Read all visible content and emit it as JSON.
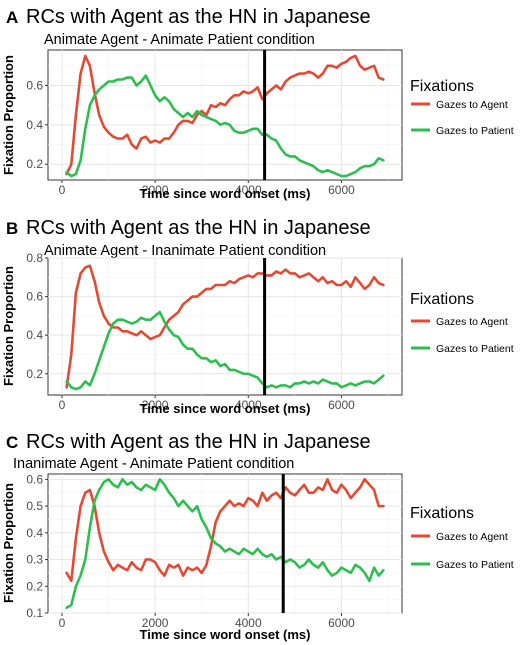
{
  "chart_data": [
    {
      "type": "line",
      "panel_letter": "A",
      "title": "RCs with Agent as the HN in Japanese",
      "subtitle": "Animate Agent - Animate Patient condition",
      "xlabel": "Time since word onset (ms)",
      "ylabel": "Fixation Proportion",
      "xlim": [
        -300,
        7300
      ],
      "ylim": [
        0.12,
        0.78
      ],
      "xticks": [
        0,
        2000,
        4000,
        6000
      ],
      "xtick_labels": [
        "0",
        "2000",
        "4000",
        "6000"
      ],
      "yticks": [
        0.2,
        0.4,
        0.6
      ],
      "ytick_labels": [
        "0.2",
        "0.4",
        "0.6"
      ],
      "vline_x": 4350,
      "grid": true,
      "legend_title": "Fixations",
      "legend_position": "right",
      "series": [
        {
          "name": "Gazes to Agent",
          "color": "#e24a33",
          "x": [
            100,
            200,
            300,
            400,
            500,
            600,
            700,
            800,
            900,
            1000,
            1100,
            1200,
            1300,
            1400,
            1500,
            1600,
            1700,
            1800,
            1900,
            2000,
            2100,
            2200,
            2300,
            2400,
            2500,
            2600,
            2700,
            2800,
            2900,
            3000,
            3100,
            3200,
            3300,
            3400,
            3500,
            3600,
            3700,
            3800,
            3900,
            4000,
            4100,
            4200,
            4300,
            4400,
            4500,
            4600,
            4700,
            4800,
            4900,
            5000,
            5100,
            5200,
            5300,
            5400,
            5500,
            5600,
            5700,
            5800,
            5900,
            6000,
            6100,
            6200,
            6300,
            6400,
            6500,
            6600,
            6700,
            6800,
            6900
          ],
          "y": [
            0.15,
            0.2,
            0.45,
            0.66,
            0.75,
            0.7,
            0.56,
            0.45,
            0.39,
            0.36,
            0.34,
            0.33,
            0.33,
            0.35,
            0.3,
            0.28,
            0.33,
            0.34,
            0.31,
            0.32,
            0.31,
            0.33,
            0.33,
            0.36,
            0.4,
            0.42,
            0.42,
            0.41,
            0.45,
            0.47,
            0.45,
            0.5,
            0.49,
            0.51,
            0.5,
            0.53,
            0.55,
            0.55,
            0.57,
            0.56,
            0.57,
            0.59,
            0.53,
            0.56,
            0.58,
            0.6,
            0.58,
            0.62,
            0.64,
            0.65,
            0.66,
            0.66,
            0.67,
            0.66,
            0.64,
            0.66,
            0.7,
            0.7,
            0.69,
            0.71,
            0.72,
            0.74,
            0.75,
            0.7,
            0.68,
            0.69,
            0.7,
            0.64,
            0.63
          ]
        },
        {
          "name": "Gazes to Patient",
          "color": "#2dbe4f",
          "x": [
            100,
            200,
            300,
            400,
            500,
            600,
            700,
            800,
            900,
            1000,
            1100,
            1200,
            1300,
            1400,
            1500,
            1600,
            1700,
            1800,
            1900,
            2000,
            2100,
            2200,
            2300,
            2400,
            2500,
            2600,
            2700,
            2800,
            2900,
            3000,
            3100,
            3200,
            3300,
            3400,
            3500,
            3600,
            3700,
            3800,
            3900,
            4000,
            4100,
            4200,
            4300,
            4400,
            4500,
            4600,
            4700,
            4800,
            4900,
            5000,
            5100,
            5200,
            5300,
            5400,
            5500,
            5600,
            5700,
            5800,
            5900,
            6000,
            6100,
            6200,
            6300,
            6400,
            6500,
            6600,
            6700,
            6800,
            6900
          ],
          "y": [
            0.16,
            0.14,
            0.15,
            0.22,
            0.38,
            0.5,
            0.55,
            0.58,
            0.6,
            0.62,
            0.62,
            0.63,
            0.63,
            0.64,
            0.64,
            0.6,
            0.62,
            0.65,
            0.6,
            0.55,
            0.52,
            0.54,
            0.52,
            0.48,
            0.46,
            0.44,
            0.46,
            0.44,
            0.47,
            0.45,
            0.44,
            0.43,
            0.42,
            0.4,
            0.41,
            0.4,
            0.37,
            0.36,
            0.36,
            0.37,
            0.38,
            0.38,
            0.35,
            0.35,
            0.33,
            0.32,
            0.28,
            0.25,
            0.24,
            0.24,
            0.22,
            0.21,
            0.2,
            0.19,
            0.17,
            0.16,
            0.17,
            0.16,
            0.15,
            0.14,
            0.14,
            0.15,
            0.16,
            0.18,
            0.19,
            0.19,
            0.2,
            0.23,
            0.22
          ]
        }
      ]
    },
    {
      "type": "line",
      "panel_letter": "B",
      "title": "RCs with Agent as the HN in Japanese",
      "subtitle": "Animate Agent - Inanimate Patient condition",
      "xlabel": "Time since word onset (ms)",
      "ylabel": "Fixation Proportion",
      "xlim": [
        -300,
        7300
      ],
      "ylim": [
        0.09,
        0.8
      ],
      "xticks": [
        0,
        2000,
        4000,
        6000
      ],
      "xtick_labels": [
        "0",
        "2000",
        "4000",
        "6000"
      ],
      "yticks": [
        0.2,
        0.4,
        0.6,
        0.8
      ],
      "ytick_labels": [
        "0.2",
        "0.4",
        "0.6",
        "0.8"
      ],
      "vline_x": 4350,
      "grid": true,
      "legend_title": "Fixations",
      "legend_position": "right",
      "series": [
        {
          "name": "Gazes to Agent",
          "color": "#e24a33",
          "x": [
            100,
            200,
            300,
            400,
            500,
            600,
            700,
            800,
            900,
            1000,
            1100,
            1200,
            1300,
            1400,
            1500,
            1600,
            1700,
            1800,
            1900,
            2000,
            2100,
            2200,
            2300,
            2400,
            2500,
            2600,
            2700,
            2800,
            2900,
            3000,
            3100,
            3200,
            3300,
            3400,
            3500,
            3600,
            3700,
            3800,
            3900,
            4000,
            4100,
            4200,
            4300,
            4400,
            4500,
            4600,
            4700,
            4800,
            4900,
            5000,
            5100,
            5200,
            5300,
            5400,
            5500,
            5600,
            5700,
            5800,
            5900,
            6000,
            6100,
            6200,
            6300,
            6400,
            6500,
            6600,
            6700,
            6800,
            6900
          ],
          "y": [
            0.13,
            0.3,
            0.62,
            0.72,
            0.75,
            0.76,
            0.68,
            0.57,
            0.5,
            0.46,
            0.44,
            0.44,
            0.42,
            0.42,
            0.41,
            0.4,
            0.42,
            0.4,
            0.38,
            0.39,
            0.4,
            0.44,
            0.48,
            0.5,
            0.52,
            0.56,
            0.58,
            0.6,
            0.6,
            0.62,
            0.64,
            0.64,
            0.66,
            0.66,
            0.66,
            0.68,
            0.67,
            0.69,
            0.7,
            0.71,
            0.7,
            0.72,
            0.72,
            0.71,
            0.71,
            0.73,
            0.72,
            0.74,
            0.72,
            0.72,
            0.7,
            0.71,
            0.72,
            0.7,
            0.68,
            0.7,
            0.67,
            0.68,
            0.66,
            0.66,
            0.68,
            0.65,
            0.7,
            0.67,
            0.64,
            0.66,
            0.7,
            0.67,
            0.66
          ]
        },
        {
          "name": "Gazes to Patient",
          "color": "#2dbe4f",
          "x": [
            100,
            200,
            300,
            400,
            500,
            600,
            700,
            800,
            900,
            1000,
            1100,
            1200,
            1300,
            1400,
            1500,
            1600,
            1700,
            1800,
            1900,
            2000,
            2100,
            2200,
            2300,
            2400,
            2500,
            2600,
            2700,
            2800,
            2900,
            3000,
            3100,
            3200,
            3300,
            3400,
            3500,
            3600,
            3700,
            3800,
            3900,
            4000,
            4100,
            4200,
            4300,
            4400,
            4500,
            4600,
            4700,
            4800,
            4900,
            5000,
            5100,
            5200,
            5300,
            5400,
            5500,
            5600,
            5700,
            5800,
            5900,
            6000,
            6100,
            6200,
            6300,
            6400,
            6500,
            6600,
            6700,
            6800,
            6900
          ],
          "y": [
            0.16,
            0.13,
            0.12,
            0.13,
            0.16,
            0.14,
            0.2,
            0.27,
            0.34,
            0.41,
            0.46,
            0.48,
            0.48,
            0.47,
            0.46,
            0.47,
            0.49,
            0.48,
            0.48,
            0.5,
            0.52,
            0.47,
            0.43,
            0.4,
            0.39,
            0.35,
            0.33,
            0.33,
            0.3,
            0.28,
            0.28,
            0.26,
            0.27,
            0.24,
            0.25,
            0.22,
            0.22,
            0.21,
            0.2,
            0.2,
            0.19,
            0.18,
            0.15,
            0.13,
            0.14,
            0.13,
            0.14,
            0.14,
            0.13,
            0.15,
            0.15,
            0.16,
            0.15,
            0.16,
            0.15,
            0.17,
            0.16,
            0.15,
            0.15,
            0.13,
            0.14,
            0.15,
            0.14,
            0.15,
            0.16,
            0.16,
            0.15,
            0.17,
            0.19
          ]
        }
      ]
    },
    {
      "type": "line",
      "panel_letter": "C",
      "title": "RCs with Agent as the HN in Japanese",
      "subtitle": "Inanimate Agent - Animate Patient condition",
      "xlabel": "Time since word onset (ms)",
      "ylabel": "Fixation Proportion",
      "xlim": [
        -300,
        7300
      ],
      "ylim": [
        0.1,
        0.62
      ],
      "xticks": [
        0,
        2000,
        4000,
        6000
      ],
      "xtick_labels": [
        "0",
        "2000",
        "4000",
        "6000"
      ],
      "yticks": [
        0.1,
        0.2,
        0.3,
        0.4,
        0.5,
        0.6
      ],
      "ytick_labels": [
        "0.1",
        "0.2",
        "0.3",
        "0.4",
        "0.5",
        "0.6"
      ],
      "vline_x": 4750,
      "grid": true,
      "legend_title": "Fixations",
      "legend_position": "right",
      "series": [
        {
          "name": "Gazes to Agent",
          "color": "#e24a33",
          "x": [
            100,
            200,
            300,
            400,
            500,
            600,
            700,
            800,
            900,
            1000,
            1100,
            1200,
            1300,
            1400,
            1500,
            1600,
            1700,
            1800,
            1900,
            2000,
            2100,
            2200,
            2300,
            2400,
            2500,
            2600,
            2700,
            2800,
            2900,
            3000,
            3100,
            3200,
            3300,
            3400,
            3500,
            3600,
            3700,
            3800,
            3900,
            4000,
            4100,
            4200,
            4300,
            4400,
            4500,
            4600,
            4700,
            4800,
            4900,
            5000,
            5100,
            5200,
            5300,
            5400,
            5500,
            5600,
            5700,
            5800,
            5900,
            6000,
            6100,
            6200,
            6300,
            6400,
            6500,
            6600,
            6700,
            6800,
            6900
          ],
          "y": [
            0.25,
            0.22,
            0.38,
            0.5,
            0.55,
            0.56,
            0.5,
            0.4,
            0.33,
            0.29,
            0.26,
            0.28,
            0.27,
            0.26,
            0.29,
            0.27,
            0.26,
            0.3,
            0.3,
            0.29,
            0.26,
            0.24,
            0.28,
            0.27,
            0.28,
            0.24,
            0.27,
            0.26,
            0.27,
            0.25,
            0.28,
            0.35,
            0.44,
            0.48,
            0.5,
            0.52,
            0.5,
            0.51,
            0.5,
            0.53,
            0.52,
            0.5,
            0.55,
            0.52,
            0.54,
            0.55,
            0.53,
            0.57,
            0.55,
            0.54,
            0.56,
            0.58,
            0.55,
            0.55,
            0.57,
            0.56,
            0.6,
            0.56,
            0.55,
            0.58,
            0.56,
            0.53,
            0.55,
            0.57,
            0.6,
            0.58,
            0.56,
            0.5,
            0.5
          ]
        },
        {
          "name": "Gazes to Patient",
          "color": "#2dbe4f",
          "x": [
            100,
            200,
            300,
            400,
            500,
            600,
            700,
            800,
            900,
            1000,
            1100,
            1200,
            1300,
            1400,
            1500,
            1600,
            1700,
            1800,
            1900,
            2000,
            2100,
            2200,
            2300,
            2400,
            2500,
            2600,
            2700,
            2800,
            2900,
            3000,
            3100,
            3200,
            3300,
            3400,
            3500,
            3600,
            3700,
            3800,
            3900,
            4000,
            4100,
            4200,
            4300,
            4400,
            4500,
            4600,
            4700,
            4800,
            4900,
            5000,
            5100,
            5200,
            5300,
            5400,
            5500,
            5600,
            5700,
            5800,
            5900,
            6000,
            6100,
            6200,
            6300,
            6400,
            6500,
            6600,
            6700,
            6800,
            6900
          ],
          "y": [
            0.12,
            0.13,
            0.2,
            0.24,
            0.3,
            0.42,
            0.52,
            0.56,
            0.59,
            0.6,
            0.58,
            0.57,
            0.6,
            0.58,
            0.59,
            0.57,
            0.56,
            0.58,
            0.57,
            0.56,
            0.6,
            0.58,
            0.55,
            0.53,
            0.5,
            0.52,
            0.5,
            0.48,
            0.5,
            0.45,
            0.42,
            0.38,
            0.36,
            0.35,
            0.33,
            0.34,
            0.33,
            0.32,
            0.34,
            0.33,
            0.32,
            0.34,
            0.32,
            0.31,
            0.32,
            0.3,
            0.31,
            0.29,
            0.3,
            0.29,
            0.27,
            0.28,
            0.3,
            0.28,
            0.27,
            0.29,
            0.26,
            0.24,
            0.25,
            0.27,
            0.26,
            0.25,
            0.28,
            0.27,
            0.25,
            0.22,
            0.27,
            0.24,
            0.26
          ]
        }
      ]
    }
  ]
}
